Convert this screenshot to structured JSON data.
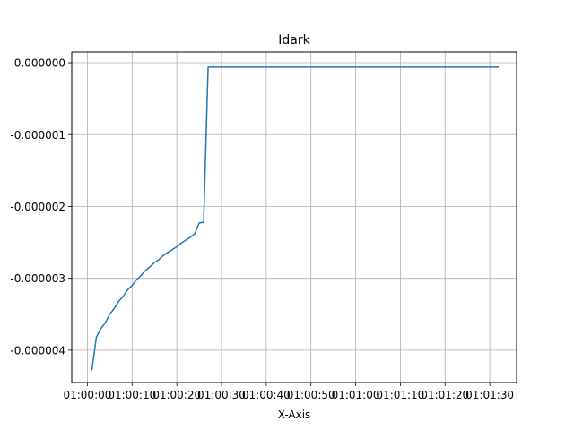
{
  "chart_data": {
    "type": "line",
    "title": "Idark",
    "xlabel": "X-Axis",
    "ylabel": "",
    "grid": true,
    "x_tick_labels": [
      "01:00:00",
      "01:00:10",
      "01:00:20",
      "01:00:30",
      "01:00:40",
      "01:00:50",
      "01:01:00",
      "01:01:10",
      "01:01:20",
      "01:01:30"
    ],
    "x_tick_seconds": [
      0,
      10,
      20,
      30,
      40,
      50,
      60,
      70,
      80,
      90
    ],
    "xlim_seconds": [
      -3.5,
      96.0
    ],
    "y_tick_labels": [
      "0.000000",
      "-0.000001",
      "-0.000002",
      "-0.000003",
      "-0.000004"
    ],
    "y_tick_values": [
      0.0,
      -1e-06,
      -2e-06,
      -3e-06,
      -4e-06
    ],
    "ylim": [
      -4.45e-06,
      1.5e-07
    ],
    "series": [
      {
        "color": "#1f77b4",
        "x_seconds": [
          1,
          2,
          3,
          4,
          5,
          6,
          7,
          8,
          9,
          10,
          11,
          12,
          13,
          14,
          15,
          16,
          17,
          18,
          19,
          20,
          21,
          22,
          23,
          24,
          25,
          26,
          27,
          28,
          92
        ],
        "y": [
          -4.28e-06,
          -3.82e-06,
          -3.7e-06,
          -3.62e-06,
          -3.5e-06,
          -3.42e-06,
          -3.32e-06,
          -3.25e-06,
          -3.16e-06,
          -3.1e-06,
          -3.02e-06,
          -2.96e-06,
          -2.89e-06,
          -2.84e-06,
          -2.78e-06,
          -2.74e-06,
          -2.68e-06,
          -2.64e-06,
          -2.6e-06,
          -2.56e-06,
          -2.51e-06,
          -2.47e-06,
          -2.43e-06,
          -2.38e-06,
          -2.23e-06,
          -2.22e-06,
          -6e-08,
          -6e-08,
          -6e-08
        ]
      }
    ]
  }
}
